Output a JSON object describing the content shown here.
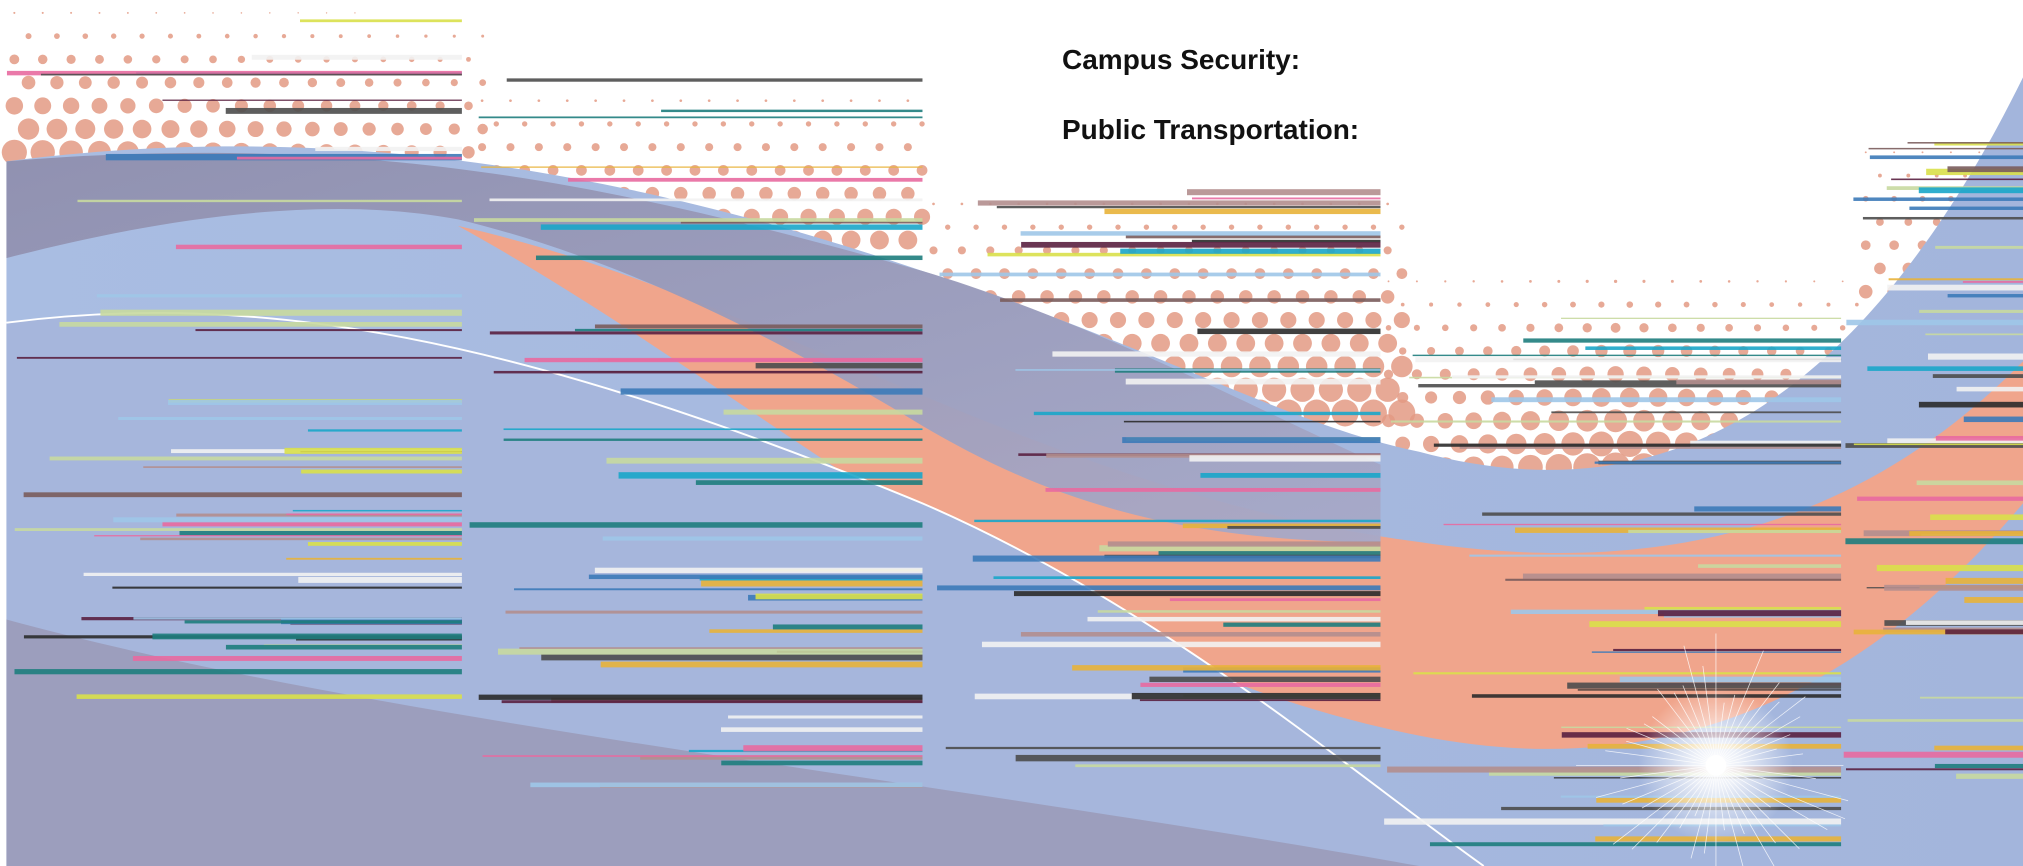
{
  "labels": {
    "items": [
      "Campus Security:",
      "Public Transportation:"
    ]
  }
}
